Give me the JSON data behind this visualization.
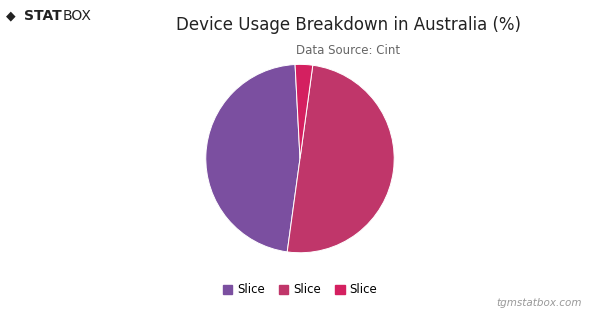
{
  "title": "Device Usage Breakdown in Australia (%)",
  "subtitle": "Data Source: Cint",
  "slices": [
    47,
    50,
    3
  ],
  "labels": [
    "Slice",
    "Slice",
    "Slice"
  ],
  "colors": [
    "#7B4FA0",
    "#C0366A",
    "#D42060"
  ],
  "startangle": 93,
  "background_color": "#FFFFFF",
  "title_fontsize": 12,
  "subtitle_fontsize": 8.5,
  "legend_fontsize": 8.5,
  "watermark": "tgmstatbox.com",
  "logo_text": "STATBOX",
  "footer_color": "#999999"
}
